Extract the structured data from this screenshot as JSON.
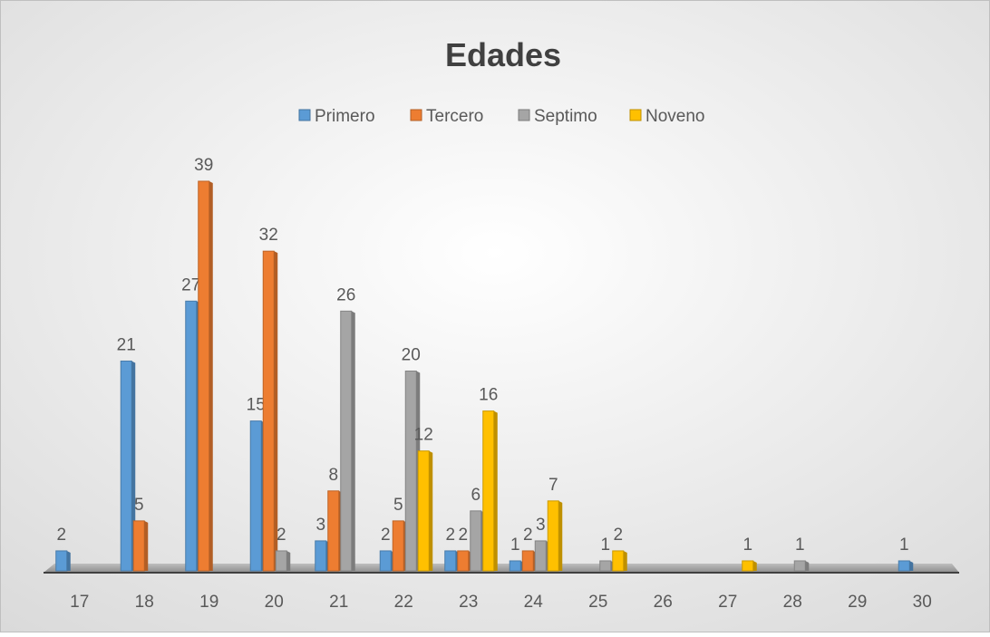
{
  "chart_data": {
    "type": "bar",
    "title": "Edades",
    "categories": [
      "17",
      "18",
      "19",
      "20",
      "21",
      "22",
      "23",
      "24",
      "25",
      "26",
      "27",
      "28",
      "29",
      "30"
    ],
    "series": [
      {
        "name": "Primero",
        "color": "#5b9bd5",
        "values": [
          2,
          21,
          27,
          15,
          3,
          2,
          2,
          1,
          null,
          null,
          null,
          null,
          null,
          1
        ]
      },
      {
        "name": "Tercero",
        "color": "#ed7d31",
        "values": [
          null,
          5,
          39,
          32,
          8,
          5,
          2,
          2,
          null,
          null,
          null,
          null,
          null,
          null
        ]
      },
      {
        "name": "Septimo",
        "color": "#a5a5a5",
        "values": [
          null,
          null,
          null,
          2,
          26,
          20,
          6,
          3,
          1,
          null,
          null,
          1,
          null,
          null
        ]
      },
      {
        "name": "Noveno",
        "color": "#ffc000",
        "values": [
          null,
          null,
          null,
          null,
          null,
          12,
          16,
          7,
          2,
          null,
          1,
          null,
          null,
          null
        ]
      }
    ],
    "legend": "top"
  }
}
